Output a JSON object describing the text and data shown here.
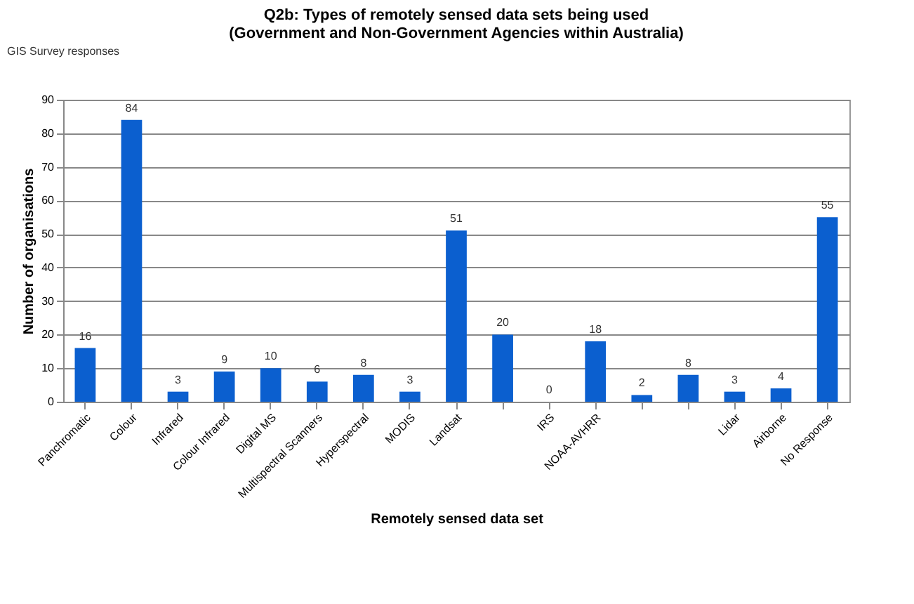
{
  "chart_data": {
    "type": "bar",
    "title": [
      "Q2b: Types of remotely sensed data sets being used",
      "(Government and Non-Government Agencies within Australia)"
    ],
    "xlabel": "Remotely sensed data set",
    "ylabel": "Number of organisations",
    "annotations": [
      "GIS Survey responses"
    ],
    "categories": [
      "Panchromatic",
      "Colour",
      "Infrared",
      "Colour Infrared",
      "Digital MS",
      "Multispectral Scanners",
      "Hyperspectral",
      "MODIS",
      "Landsat",
      null,
      "IRS",
      "NOAA-AVHRR",
      null,
      null,
      "Lidar",
      "Airborne",
      "No Response"
    ],
    "values": [
      16,
      84,
      3,
      9,
      10,
      6,
      8,
      3,
      51,
      20,
      0,
      18,
      2,
      8,
      3,
      4,
      55
    ],
    "color": "#0b5fcf",
    "ylim": [
      0,
      90
    ],
    "yticks": [
      0,
      10,
      20,
      30,
      40,
      50,
      60,
      70,
      80,
      90
    ],
    "grid": "y",
    "data_labels": true
  }
}
